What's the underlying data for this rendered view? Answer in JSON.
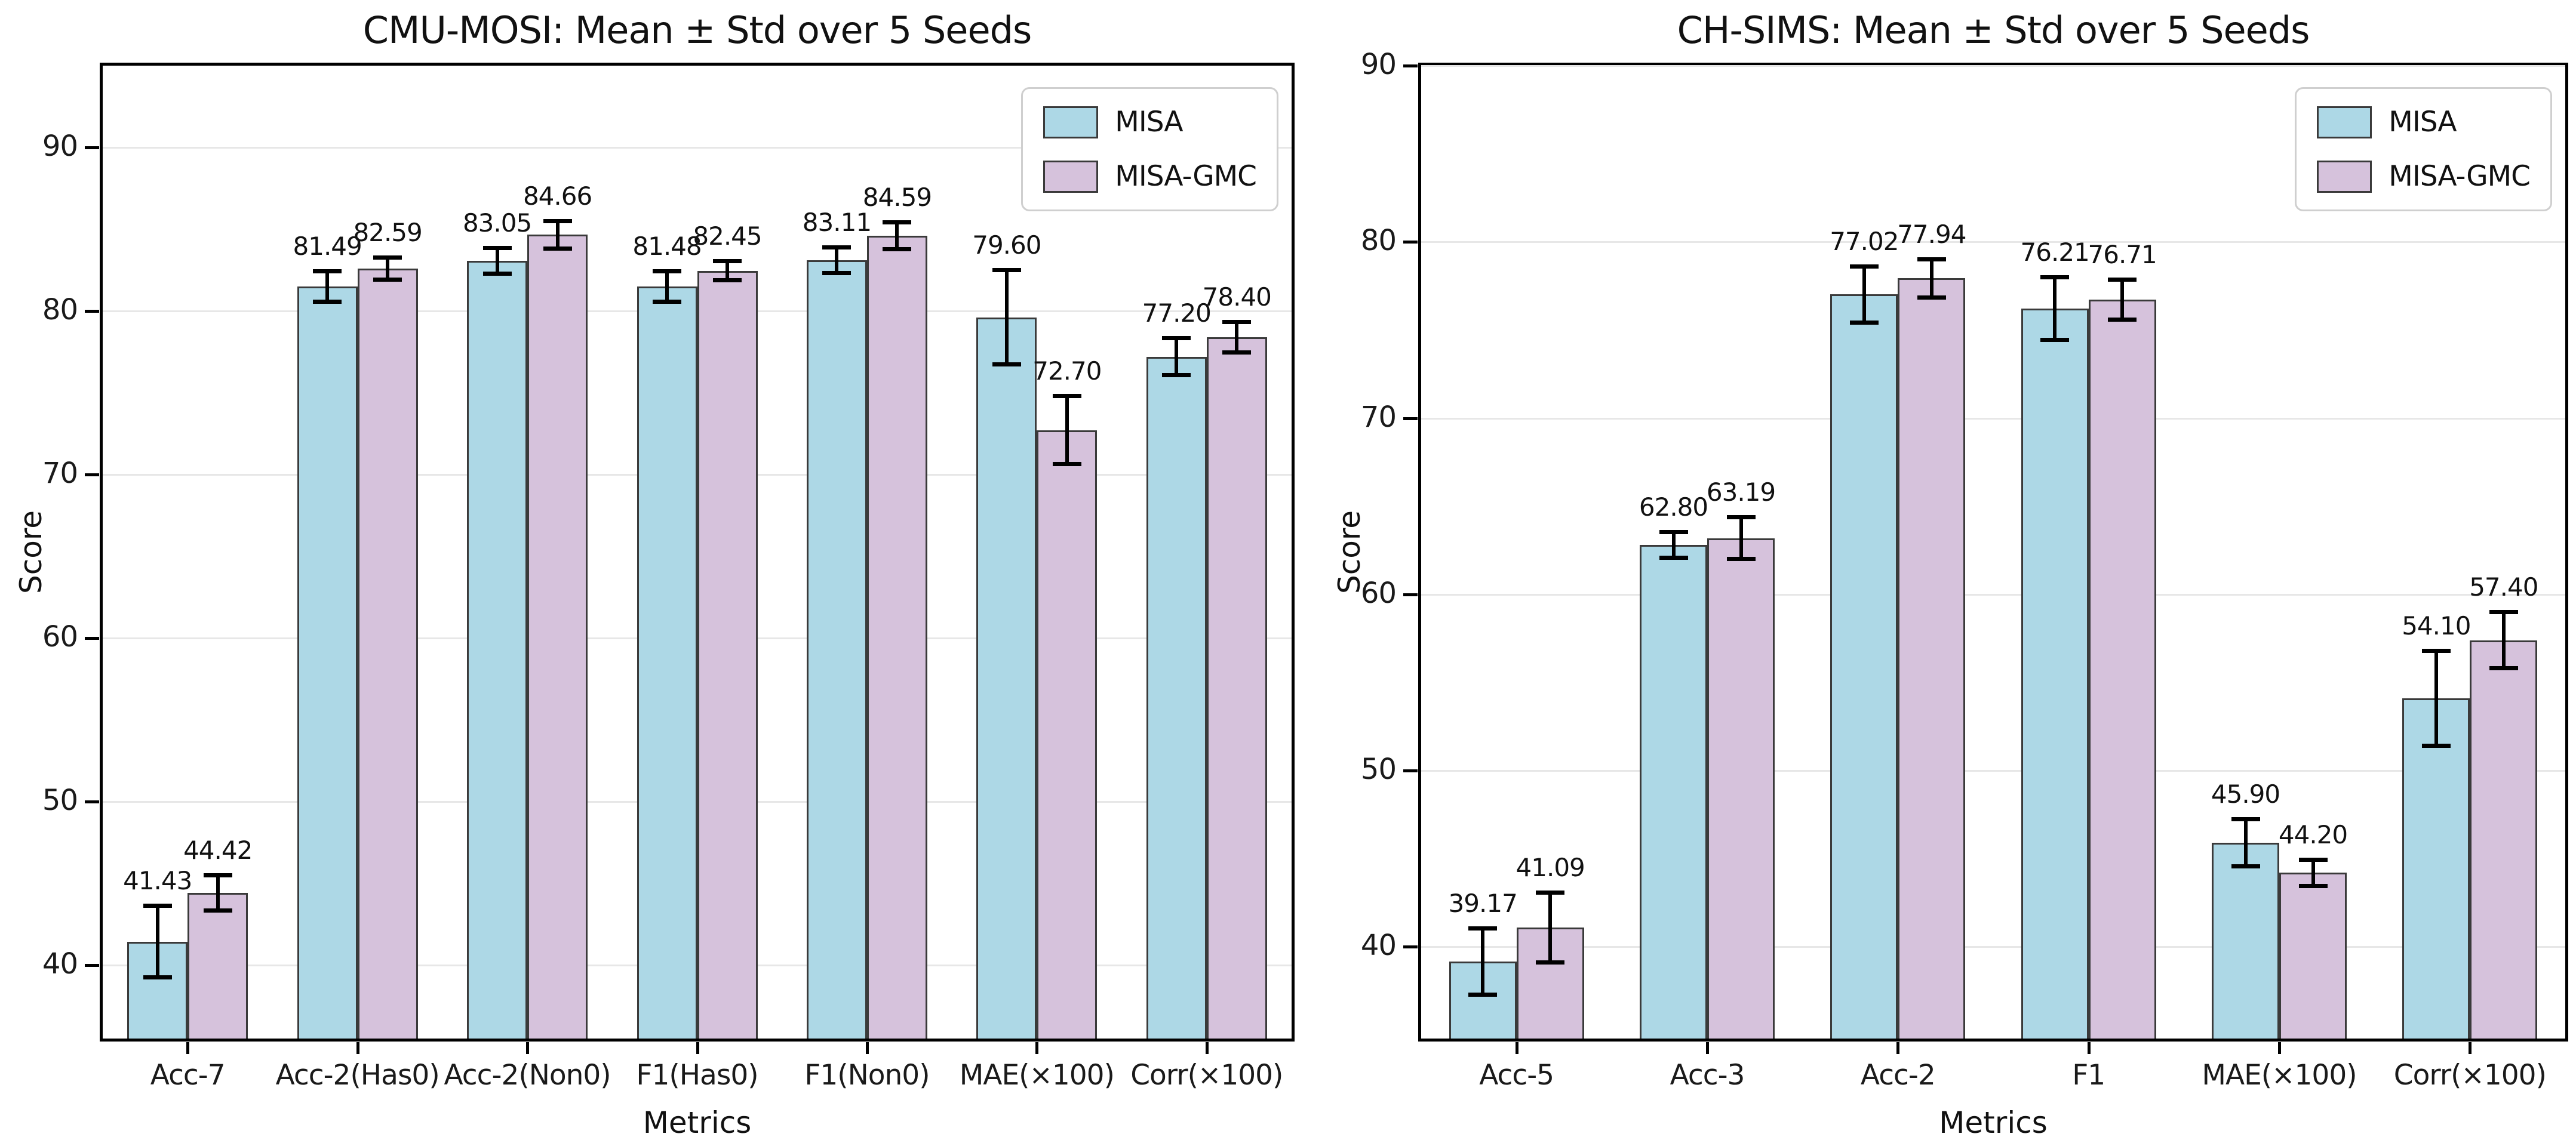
{
  "figure": {
    "background": "#ffffff",
    "description": "Two grouped bar charts comparing MISA and MISA-GMC with standard-deviation error bars"
  },
  "style": {
    "misa_color": "#ADD8E6",
    "misa_gmc_color": "#D6C2DC",
    "bar_edge_color": "#3a3a3a",
    "error_bar_color": "#000000",
    "grid_color": "#e7e7e7",
    "spine_color": "#000000",
    "text_color": "#111111"
  },
  "chart_data": [
    {
      "type": "bar",
      "title": "CMU-MOSI: Mean ± Std over 5 Seeds",
      "xlabel": "Metrics",
      "ylabel": "Score",
      "categories": [
        "Acc-7",
        "Acc-2(Has0)",
        "Acc-2(Non0)",
        "F1(Has0)",
        "F1(Non0)",
        "MAE(×100)",
        "Corr(×100)"
      ],
      "series": [
        {
          "name": "MISA",
          "color": "#ADD8E6",
          "values": [
            41.43,
            81.49,
            83.05,
            81.48,
            83.11,
            79.6,
            77.2
          ],
          "std": [
            2.2,
            0.95,
            0.8,
            0.95,
            0.8,
            2.9,
            1.15
          ]
        },
        {
          "name": "MISA-GMC",
          "color": "#D6C2DC",
          "values": [
            44.42,
            82.59,
            84.66,
            82.45,
            84.59,
            72.7,
            78.4
          ],
          "std": [
            1.1,
            0.7,
            0.85,
            0.6,
            0.85,
            2.1,
            0.95
          ]
        }
      ],
      "value_labels": [
        [
          "41.43",
          "81.49",
          "83.05",
          "81.48",
          "83.11",
          "79.60",
          "77.20"
        ],
        [
          "44.42",
          "82.59",
          "84.66",
          "82.45",
          "84.59",
          "72.70",
          "78.40"
        ]
      ],
      "ylim": [
        35.5,
        95
      ],
      "yticks": [
        40,
        50,
        60,
        70,
        80,
        90
      ],
      "grid": true,
      "legend_position": "upper right"
    },
    {
      "type": "bar",
      "title": "CH-SIMS: Mean ± Std over 5 Seeds",
      "xlabel": "Metrics",
      "ylabel": "Score",
      "categories": [
        "Acc-5",
        "Acc-3",
        "Acc-2",
        "F1",
        "MAE(×100)",
        "Corr(×100)"
      ],
      "series": [
        {
          "name": "MISA",
          "color": "#ADD8E6",
          "values": [
            39.17,
            62.8,
            77.02,
            76.21,
            45.9,
            54.1
          ],
          "std": [
            1.9,
            0.75,
            1.6,
            1.8,
            1.35,
            2.7
          ]
        },
        {
          "name": "MISA-GMC",
          "color": "#D6C2DC",
          "values": [
            41.09,
            63.19,
            77.94,
            76.71,
            44.2,
            57.4
          ],
          "std": [
            2.0,
            1.2,
            1.1,
            1.15,
            0.75,
            1.6
          ]
        }
      ],
      "value_labels": [
        [
          "39.17",
          "62.80",
          "77.02",
          "76.21",
          "45.90",
          "54.10"
        ],
        [
          "41.09",
          "63.19",
          "77.94",
          "76.71",
          "44.20",
          "57.40"
        ]
      ],
      "ylim": [
        34.8,
        90
      ],
      "yticks": [
        40,
        50,
        60,
        70,
        80,
        90
      ],
      "grid": true,
      "legend_position": "upper right"
    }
  ]
}
